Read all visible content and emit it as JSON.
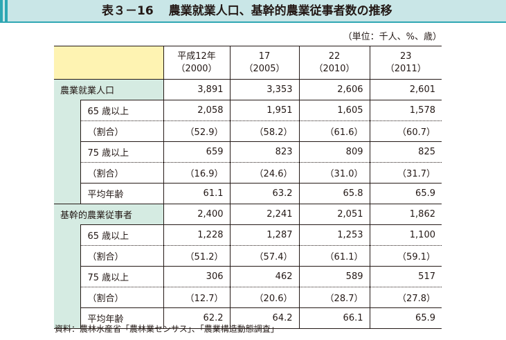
{
  "title": {
    "number": "表３－16",
    "text": "農業就業人口、基幹的農業従事者数の推移"
  },
  "unit_note": "（単位：千人、%、歳）",
  "headers": [
    {
      "line1": "平成12年",
      "line2": "（2000）"
    },
    {
      "line1": "17",
      "line2": "（2005）"
    },
    {
      "line1": "22",
      "line2": "（2010）"
    },
    {
      "line1": "23",
      "line2": "（2011）"
    }
  ],
  "groups": [
    {
      "label": "農業就業人口",
      "values": [
        "3,891",
        "3,353",
        "2,606",
        "2,601"
      ],
      "rows": [
        {
          "label": "65 歳以上",
          "values": [
            "2,058",
            "1,951",
            "1,605",
            "1,578"
          ]
        },
        {
          "label": "（割合）",
          "values": [
            "（52.9）",
            "（58.2）",
            "（61.6）",
            "（60.7）"
          ]
        },
        {
          "label": "75 歳以上",
          "values": [
            "659",
            "823",
            "809",
            "825"
          ]
        },
        {
          "label": "（割合）",
          "values": [
            "（16.9）",
            "（24.6）",
            "（31.0）",
            "（31.7）"
          ]
        },
        {
          "label": "平均年齢",
          "values": [
            "61.1",
            "63.2",
            "65.8",
            "65.9"
          ]
        }
      ]
    },
    {
      "label": "基幹的農業従事者",
      "values": [
        "2,400",
        "2,241",
        "2,051",
        "1,862"
      ],
      "rows": [
        {
          "label": "65 歳以上",
          "values": [
            "1,228",
            "1,287",
            "1,253",
            "1,100"
          ]
        },
        {
          "label": "（割合）",
          "values": [
            "（51.2）",
            "（57.4）",
            "（61.1）",
            "（59.1）"
          ]
        },
        {
          "label": "75 歳以上",
          "values": [
            "306",
            "462",
            "589",
            "517"
          ]
        },
        {
          "label": "（割合）",
          "values": [
            "（12.7）",
            "（20.6）",
            "（28.7）",
            "（27.8）"
          ]
        },
        {
          "label": "平均年齢",
          "values": [
            "62.2",
            "64.2",
            "66.1",
            "65.9"
          ]
        }
      ]
    }
  ],
  "source": "資料：農林水産省「農林業センサス」、「農業構造動態調査」",
  "colors": {
    "accent": "#2ea7b3",
    "title_bg": "#c9e6e7",
    "header_corner": "#fef3b2",
    "label_bg": "#d5ebe2"
  }
}
